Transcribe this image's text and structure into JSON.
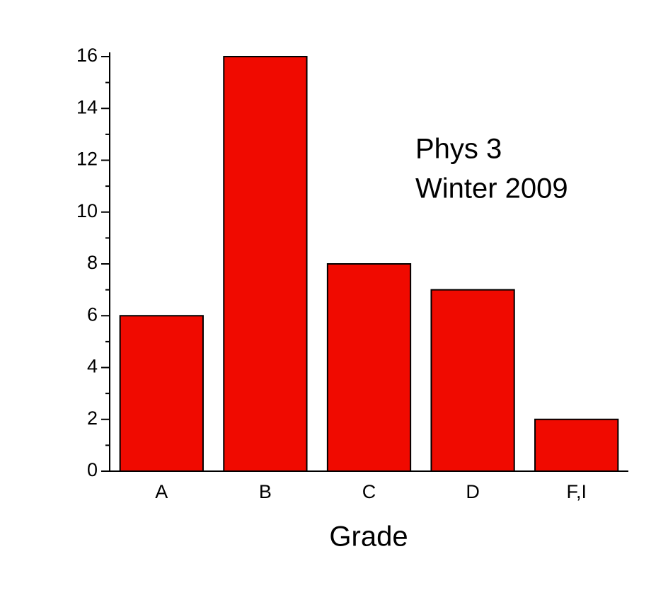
{
  "chart_data": {
    "type": "bar",
    "annotation": [
      "Phys 3",
      "Winter 2009"
    ],
    "xlabel": "Grade",
    "categories": [
      "A",
      "B",
      "C",
      "D",
      "F,I"
    ],
    "values": [
      6,
      16,
      8,
      7,
      2
    ],
    "color": "#f00a00",
    "ylim": [
      0,
      16
    ],
    "yticks": [
      0,
      2,
      4,
      6,
      8,
      10,
      12,
      14,
      16
    ],
    "yminorticks": [
      1,
      3,
      5,
      7,
      9,
      11,
      13,
      15
    ],
    "grid": false
  }
}
